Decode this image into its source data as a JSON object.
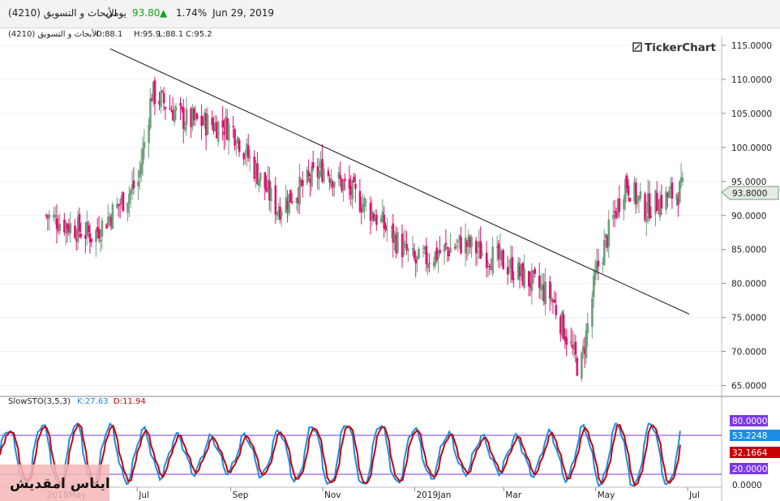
{
  "header": {
    "symbol": "الأبحاث و التسويق (4210)",
    "period": "يومي",
    "price": "93.80",
    "change_icon": "triangle-up-icon",
    "change_pct": "1.74%",
    "date": "Jun 29, 2019",
    "up_color": "#1aa31a"
  },
  "main_legend": {
    "name": "الأبحاث و التسويق (4210)",
    "open": "O:88.1",
    "high": "H:95.9",
    "low": "L:88.1",
    "close": "C:95.2"
  },
  "brand": {
    "icon": "tickerchart-logo-icon",
    "name": "TickerChart"
  },
  "watermark_text": "ايناس امقديش",
  "stoch_legend": {
    "name": "SlowSTO(3,5,3)",
    "k": "K:27.63",
    "d": "D:11.94"
  },
  "colors": {
    "up": "#6e9e7c",
    "down": "#e0116f",
    "k_line": "#1c8ce8",
    "d_line": "#cc0000",
    "band": "#7b39e6",
    "trend": "#111111",
    "price_tag": "#e4ebe4"
  },
  "chart_data": [
    {
      "type": "candlestick",
      "title": "الأبحاث و التسويق (4210)",
      "y_ticks": [
        "115.0000",
        "110.0000",
        "105.0000",
        "100.0000",
        "95.0000",
        "90.0000",
        "85.0000",
        "80.0000",
        "75.0000",
        "70.0000",
        "65.0000"
      ],
      "ylim": [
        63.4,
        117.5
      ],
      "x_tick_labels": [
        "2018May",
        "Jul",
        "Sep",
        "Nov",
        "2019Jan",
        "Mar",
        "May",
        "Jul"
      ],
      "last_price_label": "93.8000",
      "trendline": {
        "start": [
          "2018-06-13",
          114.5
        ],
        "end": [
          "2019-07-02",
          75.5
        ]
      },
      "grid": true,
      "description": "Daily candles, highs near 110.8 in Jul 2018, lows near 66.5 in Apr 2019, closing 93.80",
      "series": [
        {
          "name": "price",
          "x": [
            "2018-05-01",
            "2018-06-01",
            "2018-07-01",
            "2018-07-10",
            "2018-08-01",
            "2018-09-01",
            "2018-10-01",
            "2018-11-01",
            "2018-12-01",
            "2019-01-01",
            "2019-02-01",
            "2019-03-01",
            "2019-04-01",
            "2019-04-20",
            "2019-05-01",
            "2019-05-20",
            "2019-06-01",
            "2019-06-27"
          ],
          "close": [
            90,
            87,
            95,
            108,
            104,
            103,
            91,
            97,
            91,
            83,
            86,
            83,
            78,
            67,
            82,
            95,
            91,
            93.8
          ]
        }
      ]
    },
    {
      "type": "line",
      "title": "SlowSTO(3,5,3)",
      "y_ticks": [
        "0.0000"
      ],
      "ylim": [
        0,
        100
      ],
      "bands": [
        {
          "value": 80,
          "label": "80.0000"
        },
        {
          "value": 20,
          "label": "20.0000"
        }
      ],
      "series": [
        {
          "name": "K",
          "last_label": "53.2248",
          "x": [
            "2018-05",
            "2018-07",
            "2018-09",
            "2018-11",
            "2019-01",
            "2019-03",
            "2019-05",
            "2019-06"
          ],
          "values": [
            65,
            80,
            75,
            90,
            55,
            45,
            92,
            53.2
          ]
        },
        {
          "name": "D",
          "last_label": "32.1664",
          "x": [
            "2018-05",
            "2018-07",
            "2018-09",
            "2018-11",
            "2019-01",
            "2019-03",
            "2019-05",
            "2019-06"
          ],
          "values": [
            60,
            75,
            70,
            85,
            52,
            42,
            88,
            32.2
          ]
        }
      ]
    }
  ]
}
